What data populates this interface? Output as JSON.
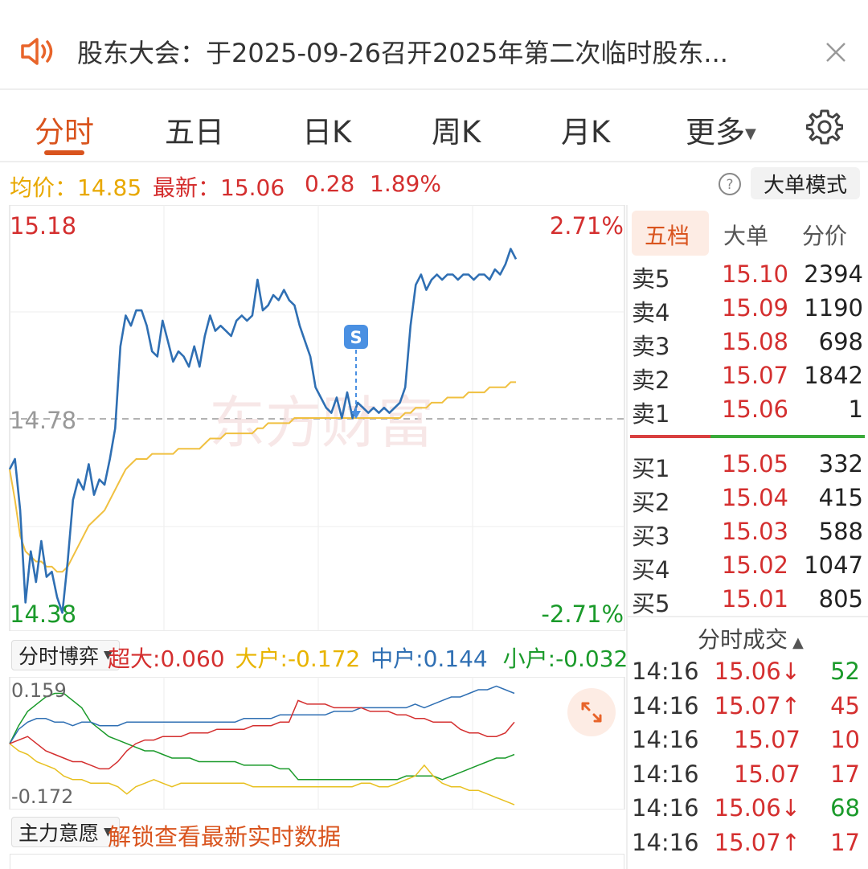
{
  "notice": {
    "text": "股东大会：于2025-09-26召开2025年第二次临时股东..."
  },
  "tabs": [
    {
      "label": "分时",
      "active": true
    },
    {
      "label": "五日"
    },
    {
      "label": "日K"
    },
    {
      "label": "周K"
    },
    {
      "label": "月K"
    },
    {
      "label": "更多"
    }
  ],
  "info": {
    "avg_label": "均价：",
    "avg_value": "14.85",
    "latest_label": "最新：",
    "latest_value": "15.06",
    "change": "0.28",
    "change_pct": "1.89%",
    "mode_button": "大单模式"
  },
  "chart": {
    "price_high": "15.18",
    "price_low": "14.38",
    "price_base": "14.78",
    "pct_high": "2.71%",
    "pct_low": "-2.71%",
    "marker_label": "S",
    "watermark": "东方财富",
    "price_range": [
      14.38,
      15.18
    ],
    "minutes_total": 240,
    "price_series": [
      14.68,
      14.7,
      14.6,
      14.42,
      14.52,
      14.46,
      14.54,
      14.47,
      14.48,
      14.43,
      14.4,
      14.5,
      14.62,
      14.66,
      14.64,
      14.69,
      14.63,
      14.66,
      14.65,
      14.7,
      14.76,
      14.92,
      14.98,
      14.96,
      14.99,
      14.99,
      14.96,
      14.91,
      14.9,
      14.97,
      14.93,
      14.89,
      14.91,
      14.9,
      14.88,
      14.92,
      14.88,
      14.94,
      14.98,
      14.95,
      14.96,
      14.95,
      14.94,
      14.97,
      14.98,
      14.97,
      14.98,
      15.05,
      14.99,
      15.0,
      15.02,
      15.01,
      15.03,
      15.01,
      15.0,
      14.96,
      14.93,
      14.9,
      14.84,
      14.82,
      14.8,
      14.79,
      14.82,
      14.78,
      14.83,
      14.78,
      14.81,
      14.8,
      14.79,
      14.8,
      14.79,
      14.8,
      14.79,
      14.8,
      14.81,
      14.84,
      14.96,
      15.04,
      15.06,
      15.03,
      15.05,
      15.06,
      15.05,
      15.06,
      15.06,
      15.05,
      15.06,
      15.06,
      15.05,
      15.06,
      15.06,
      15.05,
      15.07,
      15.06,
      15.08,
      15.11,
      15.09
    ],
    "avg_series": [
      14.68,
      14.62,
      14.55,
      14.52,
      14.51,
      14.5,
      14.5,
      14.49,
      14.49,
      14.48,
      14.48,
      14.49,
      14.51,
      14.53,
      14.55,
      14.57,
      14.58,
      14.59,
      14.6,
      14.62,
      14.64,
      14.66,
      14.68,
      14.69,
      14.7,
      14.7,
      14.7,
      14.71,
      14.71,
      14.71,
      14.71,
      14.71,
      14.72,
      14.72,
      14.72,
      14.72,
      14.72,
      14.73,
      14.74,
      14.74,
      14.74,
      14.75,
      14.75,
      14.75,
      14.75,
      14.75,
      14.75,
      14.76,
      14.76,
      14.77,
      14.77,
      14.77,
      14.77,
      14.77,
      14.78,
      14.78,
      14.78,
      14.78,
      14.78,
      14.78,
      14.78,
      14.78,
      14.78,
      14.78,
      14.78,
      14.78,
      14.78,
      14.78,
      14.78,
      14.78,
      14.78,
      14.78,
      14.78,
      14.78,
      14.78,
      14.79,
      14.79,
      14.8,
      14.8,
      14.8,
      14.81,
      14.81,
      14.81,
      14.82,
      14.82,
      14.82,
      14.82,
      14.83,
      14.83,
      14.83,
      14.83,
      14.84,
      14.84,
      14.84,
      14.84,
      14.85,
      14.85
    ]
  },
  "flow": {
    "dropdown": "分时博弈",
    "super_label": "超大:",
    "super_value": "0.060",
    "large_label": "大户:",
    "large_value": "-0.172",
    "medium_label": "中户:",
    "medium_value": "0.144",
    "small_label": "小户:",
    "small_value": "-0.032",
    "axis_high": "0.159",
    "axis_low": "-0.172",
    "range": [
      -0.172,
      0.159
    ],
    "series_super": [
      0.0,
      0.01,
      0.02,
      0.0,
      -0.02,
      -0.03,
      -0.04,
      -0.05,
      -0.05,
      -0.06,
      -0.07,
      -0.07,
      -0.05,
      -0.02,
      0.0,
      0.01,
      0.01,
      0.02,
      0.02,
      0.02,
      0.03,
      0.03,
      0.03,
      0.04,
      0.04,
      0.04,
      0.04,
      0.05,
      0.05,
      0.05,
      0.06,
      0.06,
      0.12,
      0.11,
      0.11,
      0.11,
      0.1,
      0.1,
      0.1,
      0.1,
      0.09,
      0.09,
      0.09,
      0.08,
      0.08,
      0.07,
      0.07,
      0.06,
      0.06,
      0.06,
      0.04,
      0.03,
      0.03,
      0.02,
      0.02,
      0.03,
      0.06
    ],
    "series_large": [
      0.0,
      -0.02,
      -0.03,
      -0.05,
      -0.06,
      -0.07,
      -0.09,
      -0.1,
      -0.1,
      -0.11,
      -0.11,
      -0.11,
      -0.12,
      -0.14,
      -0.12,
      -0.11,
      -0.1,
      -0.11,
      -0.12,
      -0.11,
      -0.11,
      -0.11,
      -0.11,
      -0.11,
      -0.11,
      -0.11,
      -0.11,
      -0.12,
      -0.12,
      -0.12,
      -0.12,
      -0.12,
      -0.12,
      -0.12,
      -0.12,
      -0.12,
      -0.12,
      -0.12,
      -0.12,
      -0.11,
      -0.11,
      -0.12,
      -0.12,
      -0.11,
      -0.1,
      -0.09,
      -0.06,
      -0.09,
      -0.11,
      -0.12,
      -0.12,
      -0.13,
      -0.13,
      -0.14,
      -0.15,
      -0.16,
      -0.17
    ],
    "series_medium": [
      0.0,
      0.04,
      0.06,
      0.07,
      0.07,
      0.06,
      0.06,
      0.05,
      0.06,
      0.06,
      0.05,
      0.05,
      0.05,
      0.06,
      0.06,
      0.06,
      0.06,
      0.06,
      0.06,
      0.06,
      0.06,
      0.06,
      0.06,
      0.06,
      0.06,
      0.06,
      0.07,
      0.07,
      0.07,
      0.07,
      0.08,
      0.08,
      0.08,
      0.08,
      0.08,
      0.08,
      0.09,
      0.09,
      0.09,
      0.1,
      0.1,
      0.1,
      0.1,
      0.1,
      0.1,
      0.11,
      0.1,
      0.11,
      0.12,
      0.13,
      0.13,
      0.14,
      0.15,
      0.15,
      0.16,
      0.15,
      0.14
    ],
    "series_small": [
      0.0,
      0.05,
      0.09,
      0.11,
      0.13,
      0.14,
      0.14,
      0.12,
      0.1,
      0.06,
      0.04,
      0.02,
      0.01,
      0.0,
      -0.01,
      -0.02,
      -0.02,
      -0.03,
      -0.04,
      -0.04,
      -0.04,
      -0.05,
      -0.05,
      -0.05,
      -0.05,
      -0.05,
      -0.06,
      -0.06,
      -0.06,
      -0.06,
      -0.07,
      -0.07,
      -0.1,
      -0.1,
      -0.1,
      -0.1,
      -0.1,
      -0.1,
      -0.1,
      -0.1,
      -0.1,
      -0.1,
      -0.1,
      -0.1,
      -0.09,
      -0.09,
      -0.09,
      -0.09,
      -0.1,
      -0.09,
      -0.08,
      -0.07,
      -0.06,
      -0.05,
      -0.04,
      -0.04,
      -0.03
    ]
  },
  "main_force": {
    "dropdown": "主力意愿",
    "unlock_text": "解锁查看最新实时数据"
  },
  "order_book": {
    "tabs": [
      "五档",
      "大单",
      "分价"
    ],
    "asks": [
      {
        "label": "卖5",
        "price": "15.10",
        "vol": "2394"
      },
      {
        "label": "卖4",
        "price": "15.09",
        "vol": "1190"
      },
      {
        "label": "卖3",
        "price": "15.08",
        "vol": "698"
      },
      {
        "label": "卖2",
        "price": "15.07",
        "vol": "1842"
      },
      {
        "label": "卖1",
        "price": "15.06",
        "vol": "1"
      }
    ],
    "bids": [
      {
        "label": "买1",
        "price": "15.05",
        "vol": "332"
      },
      {
        "label": "买2",
        "price": "15.04",
        "vol": "415"
      },
      {
        "label": "买3",
        "price": "15.03",
        "vol": "588"
      },
      {
        "label": "买4",
        "price": "15.02",
        "vol": "1047"
      },
      {
        "label": "买5",
        "price": "15.01",
        "vol": "805"
      }
    ],
    "trades_title": "分时成交",
    "trades": [
      {
        "time": "14:16",
        "price": "15.06↓",
        "vol": "52",
        "color": "#1a9a2a"
      },
      {
        "time": "14:16",
        "price": "15.07↑",
        "vol": "45",
        "color": "#d42f2f"
      },
      {
        "time": "14:16",
        "price": "15.07",
        "vol": "10",
        "color": "#d42f2f"
      },
      {
        "time": "14:16",
        "price": "15.07",
        "vol": "17",
        "color": "#d42f2f"
      },
      {
        "time": "14:16",
        "price": "15.06↓",
        "vol": "68",
        "color": "#1a9a2a"
      },
      {
        "time": "14:16",
        "price": "15.07↑",
        "vol": "17",
        "color": "#d42f2f"
      }
    ]
  },
  "colors": {
    "accent": "#d9541e",
    "up": "#d42f2f",
    "down": "#1a9a2a",
    "price_line": "#2f6fb3",
    "avg_line": "#f0c040"
  }
}
